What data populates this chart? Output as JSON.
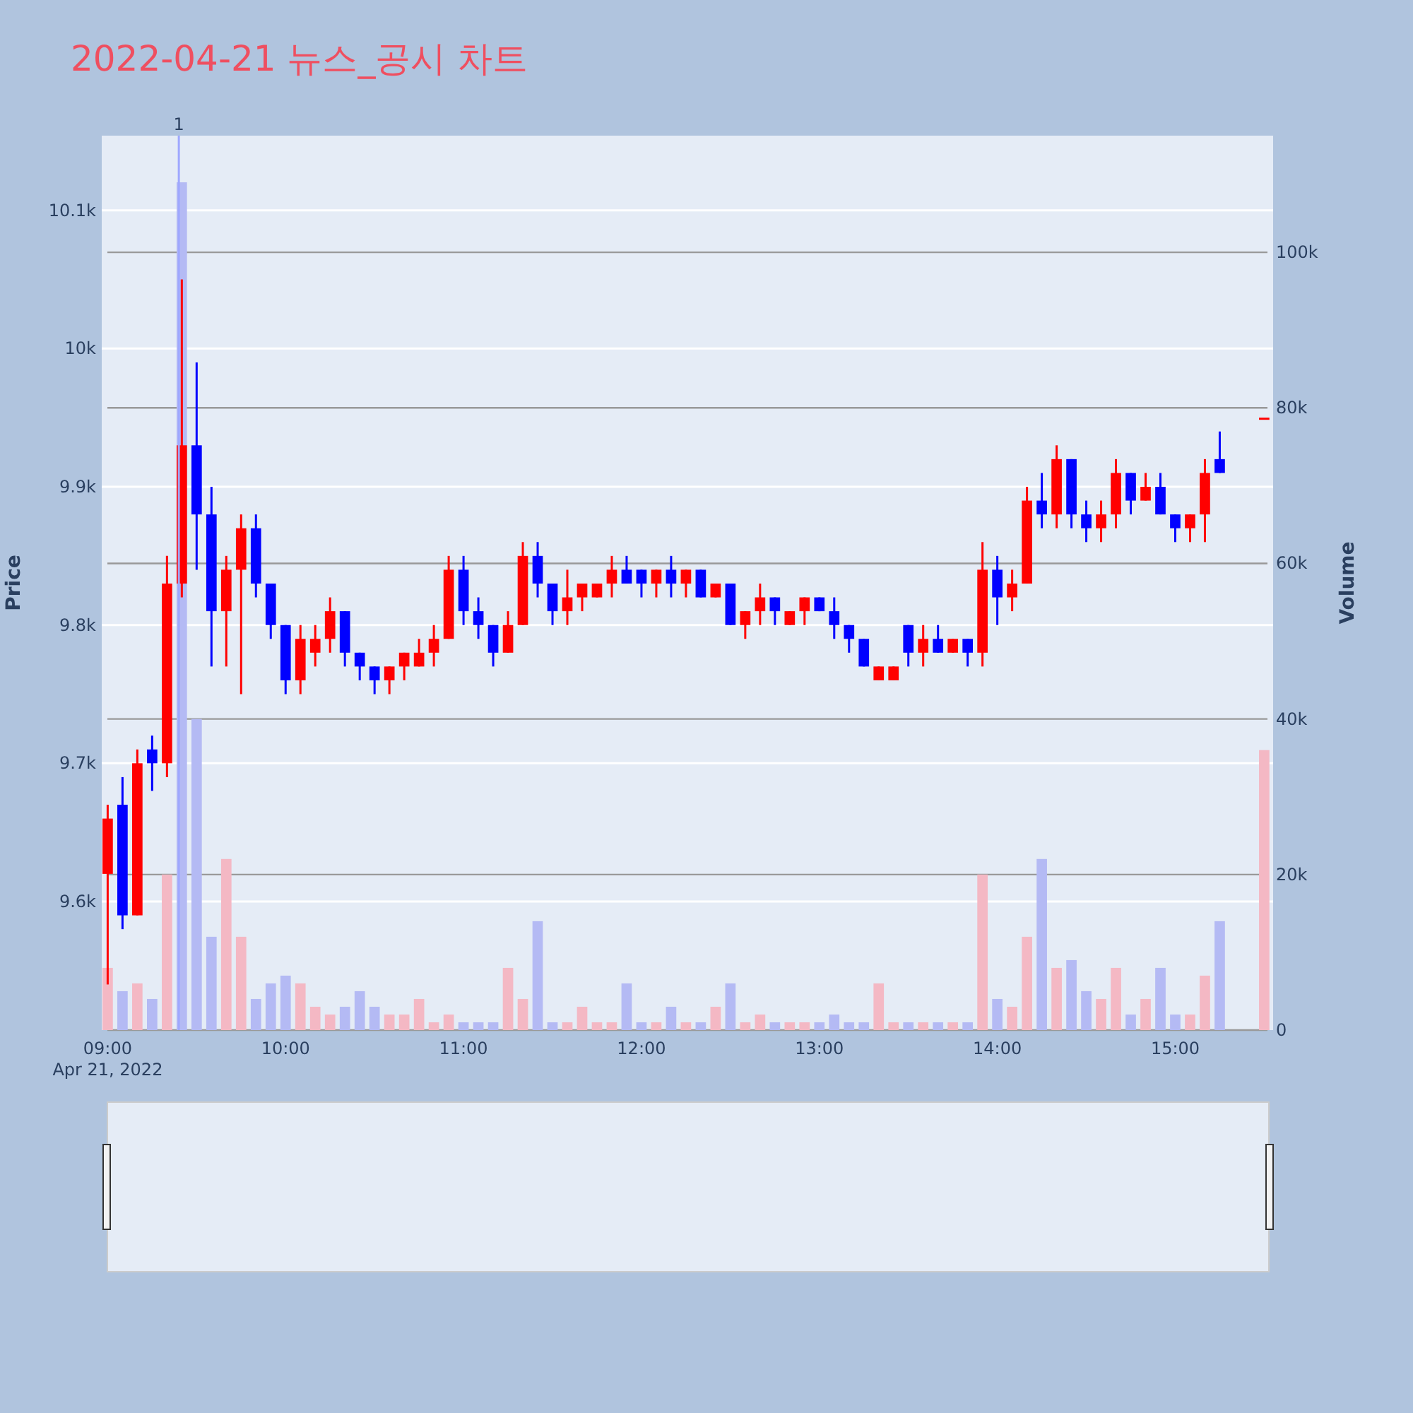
{
  "chart_data": {
    "type": "candlestick",
    "title": "2022-04-21 뉴스_공시 차트",
    "ylabel": "Price",
    "y2label": "Volume",
    "x": [
      "2022-04-21T09:00",
      "2022-04-21T09:05",
      "2022-04-21T09:10",
      "2022-04-21T09:15",
      "2022-04-21T09:20",
      "2022-04-21T09:25",
      "2022-04-21T09:30",
      "2022-04-21T09:35",
      "2022-04-21T09:40",
      "2022-04-21T09:45",
      "2022-04-21T09:50",
      "2022-04-21T09:55",
      "2022-04-21T10:00",
      "2022-04-21T10:05",
      "2022-04-21T10:10",
      "2022-04-21T10:15",
      "2022-04-21T10:20",
      "2022-04-21T10:25",
      "2022-04-21T10:30",
      "2022-04-21T10:35",
      "2022-04-21T10:40",
      "2022-04-21T10:45",
      "2022-04-21T10:50",
      "2022-04-21T10:55",
      "2022-04-21T11:00",
      "2022-04-21T11:05",
      "2022-04-21T11:10",
      "2022-04-21T11:15",
      "2022-04-21T11:20",
      "2022-04-21T11:25",
      "2022-04-21T11:30",
      "2022-04-21T11:35",
      "2022-04-21T11:40",
      "2022-04-21T11:45",
      "2022-04-21T11:50",
      "2022-04-21T11:55",
      "2022-04-21T12:00",
      "2022-04-21T12:05",
      "2022-04-21T12:10",
      "2022-04-21T12:15",
      "2022-04-21T12:20",
      "2022-04-21T12:25",
      "2022-04-21T12:30",
      "2022-04-21T12:35",
      "2022-04-21T12:40",
      "2022-04-21T12:45",
      "2022-04-21T12:50",
      "2022-04-21T12:55",
      "2022-04-21T13:00",
      "2022-04-21T13:05",
      "2022-04-21T13:10",
      "2022-04-21T13:15",
      "2022-04-21T13:20",
      "2022-04-21T13:25",
      "2022-04-21T13:30",
      "2022-04-21T13:35",
      "2022-04-21T13:40",
      "2022-04-21T13:45",
      "2022-04-21T13:50",
      "2022-04-21T13:55",
      "2022-04-21T14:00",
      "2022-04-21T14:05",
      "2022-04-21T14:10",
      "2022-04-21T14:15",
      "2022-04-21T14:20",
      "2022-04-21T14:25",
      "2022-04-21T14:30",
      "2022-04-21T14:35",
      "2022-04-21T14:40",
      "2022-04-21T14:45",
      "2022-04-21T14:50",
      "2022-04-21T14:55",
      "2022-04-21T15:00",
      "2022-04-21T15:05",
      "2022-04-21T15:10",
      "2022-04-21T15:15",
      "2022-04-21T15:30"
    ],
    "series": [
      {
        "type": "candlestick",
        "colors": [
          "#ff0000",
          "#0000ff",
          "#ff0000",
          "#0000ff",
          "#ff0000",
          "#ff0000",
          "#0000ff",
          "#0000ff",
          "#ff0000",
          "#ff0000",
          "#0000ff",
          "#0000ff",
          "#0000ff",
          "#ff0000",
          "#ff0000",
          "#ff0000",
          "#0000ff",
          "#0000ff",
          "#0000ff",
          "#ff0000",
          "#ff0000",
          "#ff0000",
          "#ff0000",
          "#ff0000",
          "#0000ff",
          "#0000ff",
          "#0000ff",
          "#ff0000",
          "#ff0000",
          "#0000ff",
          "#0000ff",
          "#ff0000",
          "#ff0000",
          "#ff0000",
          "#ff0000",
          "#0000ff",
          "#0000ff",
          "#ff0000",
          "#0000ff",
          "#ff0000",
          "#0000ff",
          "#ff0000",
          "#0000ff",
          "#ff0000",
          "#ff0000",
          "#0000ff",
          "#ff0000",
          "#ff0000",
          "#0000ff",
          "#0000ff",
          "#0000ff",
          "#0000ff",
          "#ff0000",
          "#ff0000",
          "#0000ff",
          "#ff0000",
          "#0000ff",
          "#ff0000",
          "#0000ff",
          "#ff0000",
          "#0000ff",
          "#ff0000",
          "#ff0000",
          "#0000ff",
          "#ff0000",
          "#0000ff",
          "#0000ff",
          "#ff0000",
          "#ff0000",
          "#0000ff",
          "#ff0000",
          "#0000ff",
          "#0000ff",
          "#ff0000",
          "#ff0000",
          "#0000ff",
          "#ff0000"
        ],
        "ohlc": [
          [
            9620,
            9670,
            9540,
            9660
          ],
          [
            9670,
            9690,
            9580,
            9590
          ],
          [
            9590,
            9710,
            9590,
            9700
          ],
          [
            9710,
            9720,
            9680,
            9700
          ],
          [
            9700,
            9850,
            9690,
            9830
          ],
          [
            9830,
            10050,
            9820,
            9930
          ],
          [
            9930,
            9990,
            9840,
            9880
          ],
          [
            9880,
            9900,
            9770,
            9810
          ],
          [
            9810,
            9850,
            9770,
            9840
          ],
          [
            9840,
            9880,
            9750,
            9870
          ],
          [
            9870,
            9880,
            9820,
            9830
          ],
          [
            9830,
            9830,
            9790,
            9800
          ],
          [
            9800,
            9800,
            9750,
            9760
          ],
          [
            9760,
            9800,
            9750,
            9790
          ],
          [
            9780,
            9800,
            9770,
            9790
          ],
          [
            9790,
            9820,
            9780,
            9810
          ],
          [
            9810,
            9810,
            9770,
            9780
          ],
          [
            9780,
            9780,
            9760,
            9770
          ],
          [
            9770,
            9770,
            9750,
            9760
          ],
          [
            9760,
            9770,
            9750,
            9770
          ],
          [
            9770,
            9780,
            9760,
            9780
          ],
          [
            9770,
            9790,
            9770,
            9780
          ],
          [
            9780,
            9800,
            9770,
            9790
          ],
          [
            9790,
            9850,
            9790,
            9840
          ],
          [
            9840,
            9850,
            9800,
            9810
          ],
          [
            9810,
            9820,
            9790,
            9800
          ],
          [
            9800,
            9800,
            9770,
            9780
          ],
          [
            9780,
            9810,
            9780,
            9800
          ],
          [
            9800,
            9860,
            9800,
            9850
          ],
          [
            9850,
            9860,
            9820,
            9830
          ],
          [
            9830,
            9830,
            9800,
            9810
          ],
          [
            9810,
            9840,
            9800,
            9820
          ],
          [
            9820,
            9830,
            9810,
            9830
          ],
          [
            9820,
            9830,
            9820,
            9830
          ],
          [
            9830,
            9850,
            9820,
            9840
          ],
          [
            9840,
            9850,
            9830,
            9830
          ],
          [
            9840,
            9840,
            9820,
            9830
          ],
          [
            9830,
            9840,
            9820,
            9840
          ],
          [
            9840,
            9850,
            9820,
            9830
          ],
          [
            9830,
            9840,
            9820,
            9840
          ],
          [
            9840,
            9840,
            9820,
            9820
          ],
          [
            9820,
            9830,
            9820,
            9830
          ],
          [
            9830,
            9830,
            9800,
            9800
          ],
          [
            9800,
            9810,
            9790,
            9810
          ],
          [
            9810,
            9830,
            9800,
            9820
          ],
          [
            9820,
            9820,
            9800,
            9810
          ],
          [
            9800,
            9810,
            9800,
            9810
          ],
          [
            9810,
            9820,
            9800,
            9820
          ],
          [
            9820,
            9820,
            9810,
            9810
          ],
          [
            9810,
            9820,
            9790,
            9800
          ],
          [
            9800,
            9800,
            9780,
            9790
          ],
          [
            9790,
            9790,
            9770,
            9770
          ],
          [
            9760,
            9770,
            9760,
            9770
          ],
          [
            9760,
            9770,
            9760,
            9770
          ],
          [
            9800,
            9800,
            9770,
            9780
          ],
          [
            9780,
            9800,
            9770,
            9790
          ],
          [
            9790,
            9800,
            9780,
            9780
          ],
          [
            9780,
            9790,
            9780,
            9790
          ],
          [
            9790,
            9790,
            9770,
            9780
          ],
          [
            9780,
            9860,
            9770,
            9840
          ],
          [
            9840,
            9850,
            9800,
            9820
          ],
          [
            9820,
            9840,
            9810,
            9830
          ],
          [
            9830,
            9900,
            9830,
            9890
          ],
          [
            9890,
            9910,
            9870,
            9880
          ],
          [
            9880,
            9930,
            9870,
            9920
          ],
          [
            9920,
            9920,
            9870,
            9880
          ],
          [
            9880,
            9890,
            9860,
            9870
          ],
          [
            9870,
            9890,
            9860,
            9880
          ],
          [
            9880,
            9920,
            9870,
            9910
          ],
          [
            9910,
            9910,
            9880,
            9890
          ],
          [
            9890,
            9910,
            9890,
            9900
          ],
          [
            9900,
            9910,
            9880,
            9880
          ],
          [
            9880,
            9880,
            9860,
            9870
          ],
          [
            9870,
            9880,
            9860,
            9880
          ],
          [
            9880,
            9920,
            9860,
            9910
          ],
          [
            9920,
            9940,
            9910,
            9910
          ],
          [
            9950,
            9950,
            9950,
            9950
          ]
        ]
      },
      {
        "type": "bar",
        "axis": "y2",
        "colors": [
          "#f4b8c4",
          "#b4baf4",
          "#f4b8c4",
          "#b4baf4",
          "#f4b8c4",
          "#b4baf4",
          "#b4baf4",
          "#b4baf4",
          "#f4b8c4",
          "#f4b8c4",
          "#b4baf4",
          "#b4baf4",
          "#b4baf4",
          "#f4b8c4",
          "#f4b8c4",
          "#f4b8c4",
          "#b4baf4",
          "#b4baf4",
          "#b4baf4",
          "#f4b8c4",
          "#f4b8c4",
          "#f4b8c4",
          "#f4b8c4",
          "#f4b8c4",
          "#b4baf4",
          "#b4baf4",
          "#b4baf4",
          "#f4b8c4",
          "#f4b8c4",
          "#b4baf4",
          "#b4baf4",
          "#f4b8c4",
          "#f4b8c4",
          "#f4b8c4",
          "#f4b8c4",
          "#b4baf4",
          "#b4baf4",
          "#f4b8c4",
          "#b4baf4",
          "#f4b8c4",
          "#b4baf4",
          "#f4b8c4",
          "#b4baf4",
          "#f4b8c4",
          "#f4b8c4",
          "#b4baf4",
          "#f4b8c4",
          "#f4b8c4",
          "#b4baf4",
          "#b4baf4",
          "#b4baf4",
          "#b4baf4",
          "#f4b8c4",
          "#f4b8c4",
          "#b4baf4",
          "#f4b8c4",
          "#b4baf4",
          "#f4b8c4",
          "#b4baf4",
          "#f4b8c4",
          "#b4baf4",
          "#f4b8c4",
          "#f4b8c4",
          "#b4baf4",
          "#f4b8c4",
          "#b4baf4",
          "#b4baf4",
          "#f4b8c4",
          "#f4b8c4",
          "#b4baf4",
          "#f4b8c4",
          "#b4baf4",
          "#b4baf4",
          "#f4b8c4",
          "#f4b8c4",
          "#b4baf4",
          "#f4b8c4"
        ],
        "values": [
          8000,
          5000,
          6000,
          4000,
          20000,
          109000,
          40000,
          12000,
          22000,
          12000,
          4000,
          6000,
          7000,
          6000,
          3000,
          2000,
          3000,
          5000,
          3000,
          2000,
          2000,
          4000,
          1000,
          2000,
          1000,
          1000,
          1000,
          8000,
          4000,
          14000,
          1000,
          1000,
          3000,
          1000,
          1000,
          6000,
          1000,
          1000,
          3000,
          1000,
          1000,
          3000,
          6000,
          1000,
          2000,
          1000,
          1000,
          1000,
          1000,
          2000,
          1000,
          1000,
          6000,
          1000,
          1000,
          1000,
          1000,
          1000,
          1000,
          20000,
          4000,
          3000,
          12000,
          22000,
          8000,
          9000,
          5000,
          4000,
          8000,
          2000,
          4000,
          8000,
          2000,
          2000,
          7000,
          14000,
          36000
        ]
      }
    ],
    "xlim": [
      "2022-04-21T08:58",
      "2022-04-21T15:33"
    ],
    "xticks": [
      {
        "value": "2022-04-21T09:00",
        "label": "09:00\nApr 21, 2022"
      },
      {
        "value": "2022-04-21T10:00",
        "label": "10:00"
      },
      {
        "value": "2022-04-21T11:00",
        "label": "11:00"
      },
      {
        "value": "2022-04-21T12:00",
        "label": "12:00"
      },
      {
        "value": "2022-04-21T13:00",
        "label": "13:00"
      },
      {
        "value": "2022-04-21T14:00",
        "label": "14:00"
      },
      {
        "value": "2022-04-21T15:00",
        "label": "15:00"
      }
    ],
    "ylim": [
      9507,
      10154
    ],
    "yticks": [
      {
        "value": 9600,
        "label": "9.6k"
      },
      {
        "value": 9700,
        "label": "9.7k"
      },
      {
        "value": 9800,
        "label": "9.8k"
      },
      {
        "value": 9900,
        "label": "9.9k"
      },
      {
        "value": 10000,
        "label": "10k"
      },
      {
        "value": 10100,
        "label": "10.1k"
      }
    ],
    "y2lim": [
      0,
      115000
    ],
    "y2ticks": [
      0,
      {
        "value": 20000,
        "label": "20k"
      },
      {
        "value": 40000,
        "label": "40k"
      },
      {
        "value": 60000,
        "label": "60k"
      },
      {
        "value": 80000,
        "label": "80k"
      },
      {
        "value": 100000,
        "label": "100k"
      }
    ],
    "ref_lines": [
      {
        "axis": "x",
        "value": "2022-04-21T09:24",
        "label": "1",
        "color": "#9fa8ff"
      }
    ],
    "grid": "y"
  }
}
